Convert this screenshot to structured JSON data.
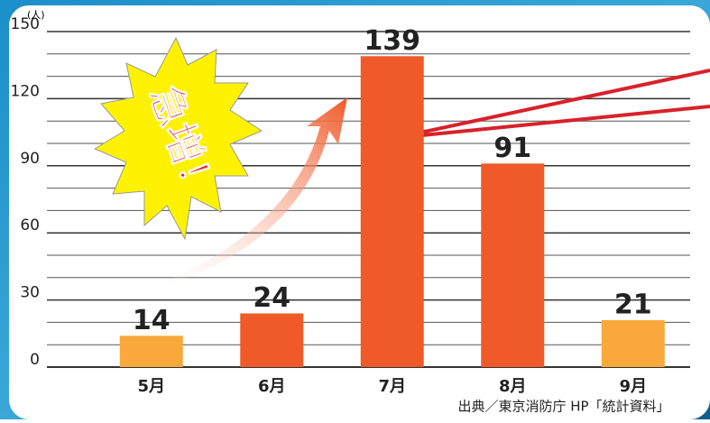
{
  "chart_data": {
    "type": "bar",
    "y_unit": "(人)",
    "categories": [
      "5月",
      "6月",
      "7月",
      "8月",
      "9月"
    ],
    "values": [
      14,
      24,
      139,
      91,
      21
    ],
    "colors": [
      "#f9a93b",
      "#f05a28",
      "#f05a28",
      "#f05a28",
      "#f9a93b"
    ],
    "ylim": [
      0,
      150
    ],
    "yticks": [
      0,
      30,
      60,
      90,
      120,
      150
    ],
    "grid": true,
    "grid_step": 10,
    "annotation": "急増！",
    "source": "出典／東京消防庁 HP「統計資料」"
  }
}
